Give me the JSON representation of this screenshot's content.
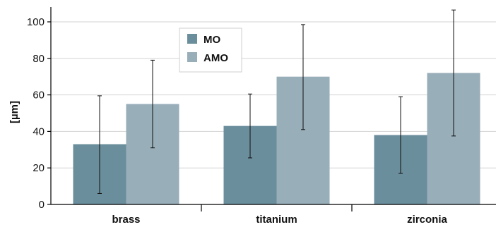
{
  "chart_data": {
    "type": "bar",
    "categories": [
      "brass",
      "titanium",
      "zirconia"
    ],
    "series": [
      {
        "name": "MO",
        "values": [
          33,
          43,
          38
        ],
        "error_low": [
          6,
          25.5,
          17
        ],
        "error_high": [
          59.5,
          60.5,
          59
        ],
        "color": "#6b8e9c"
      },
      {
        "name": "AMO",
        "values": [
          55,
          70,
          72
        ],
        "error_low": [
          31,
          41,
          37.5
        ],
        "error_high": [
          79,
          98.5,
          106.5
        ],
        "color": "#98aeb9"
      }
    ],
    "title": "",
    "xlabel": "",
    "ylabel": "[µm]",
    "ylim": [
      0,
      100
    ],
    "yticks": [
      0,
      20,
      40,
      60,
      80,
      100
    ],
    "grid": true,
    "legend_position": "top-center"
  }
}
